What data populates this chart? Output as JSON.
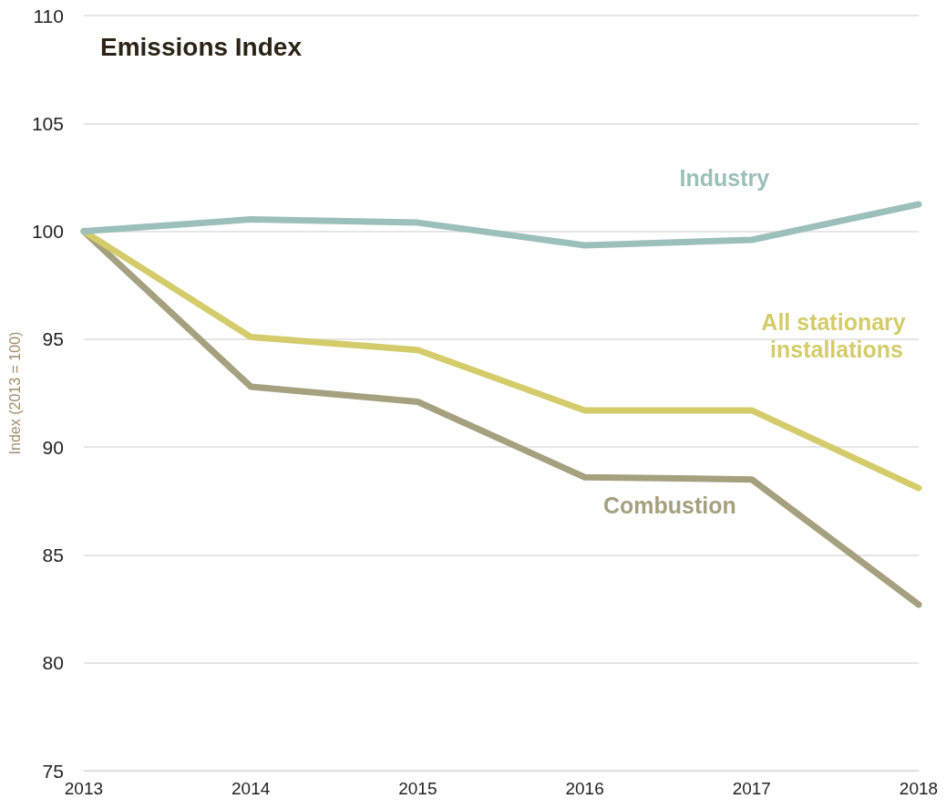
{
  "chart_data": {
    "type": "line",
    "title": "Emissions Index",
    "ylabel": "Index (2013 = 100)",
    "categories": [
      "2013",
      "2014",
      "2015",
      "2016",
      "2017",
      "2018"
    ],
    "series": [
      {
        "name": "Industry",
        "color": "#9bbfbb",
        "values": [
          100,
          100.55,
          100.4,
          99.35,
          99.6,
          101.25
        ]
      },
      {
        "name": "All stationary installations",
        "color": "#d4cc6a",
        "values": [
          100,
          95.1,
          94.5,
          91.7,
          91.7,
          88.1
        ]
      },
      {
        "name": "Combustion",
        "color": "#a5a07e",
        "values": [
          100,
          92.8,
          92.1,
          88.6,
          88.5,
          82.7
        ]
      }
    ],
    "ylim": [
      75,
      110
    ],
    "yticks": [
      75,
      80,
      85,
      90,
      95,
      100,
      105,
      110
    ],
    "grid": "y",
    "legend": false,
    "marker": "none",
    "line_style": "solid"
  }
}
